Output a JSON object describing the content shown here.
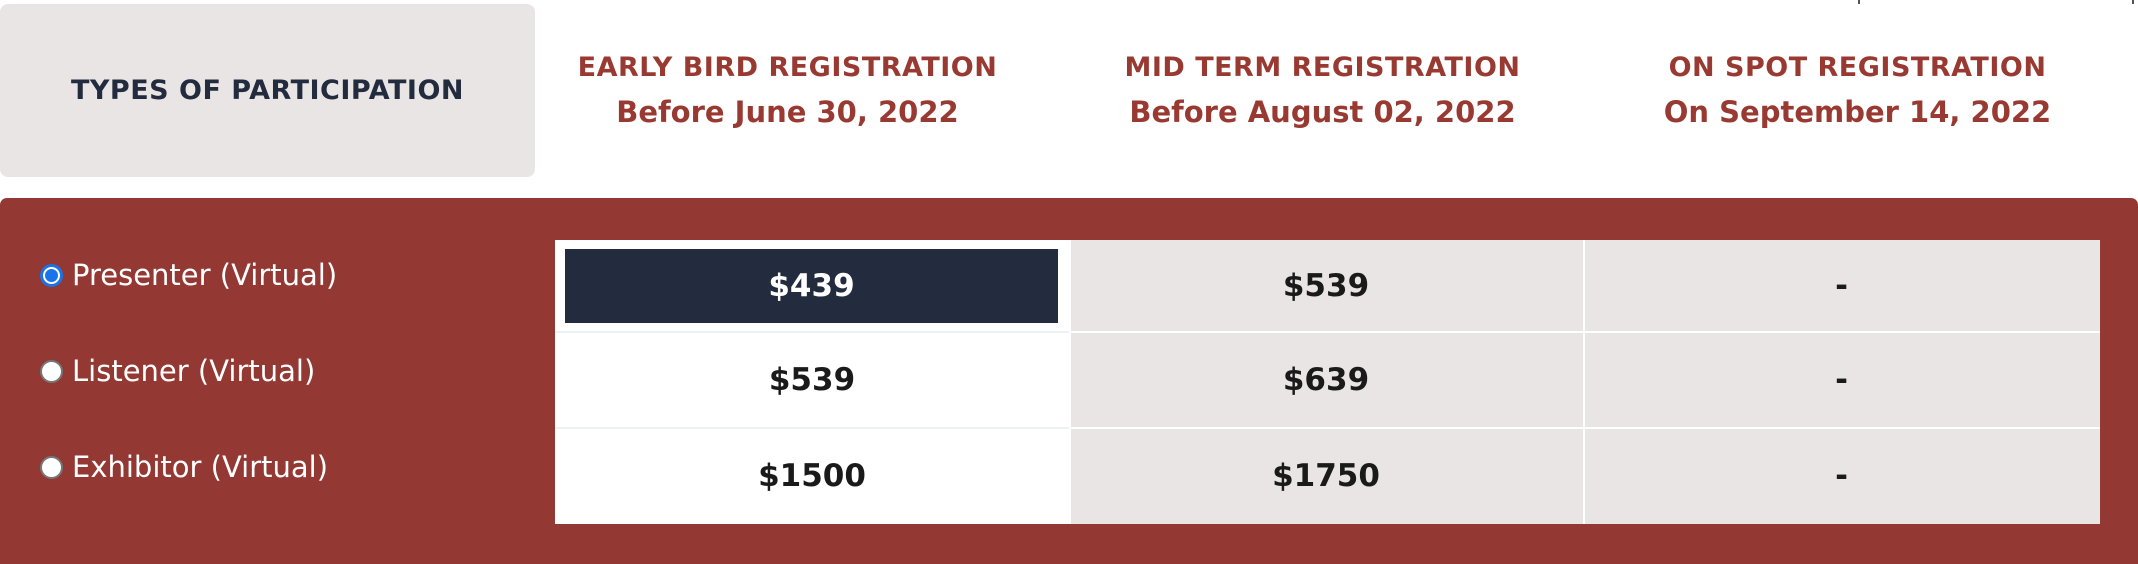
{
  "header": {
    "types_label": "TYPES OF PARTICIPATION",
    "columns": [
      {
        "title": "EARLY BIRD REGISTRATION",
        "subtitle": "Before June 30, 2022"
      },
      {
        "title": "MID TERM REGISTRATION",
        "subtitle": "Before August 02, 2022"
      },
      {
        "title": "ON SPOT REGISTRATION",
        "subtitle": "On September 14, 2022"
      }
    ]
  },
  "participation_types": [
    {
      "label": "Presenter (Virtual)",
      "checked": true
    },
    {
      "label": "Listener (Virtual)",
      "checked": false
    },
    {
      "label": "Exhibitor (Virtual)",
      "checked": false
    }
  ],
  "prices": [
    [
      "$439",
      "$539",
      "-"
    ],
    [
      "$539",
      "$639",
      "-"
    ],
    [
      "$1500",
      "$1750",
      "-"
    ]
  ],
  "colors": {
    "accent": "#933833",
    "header_text": "#993a32",
    "selected": "#232b3e",
    "cell_bg": "#e9e5e4"
  }
}
